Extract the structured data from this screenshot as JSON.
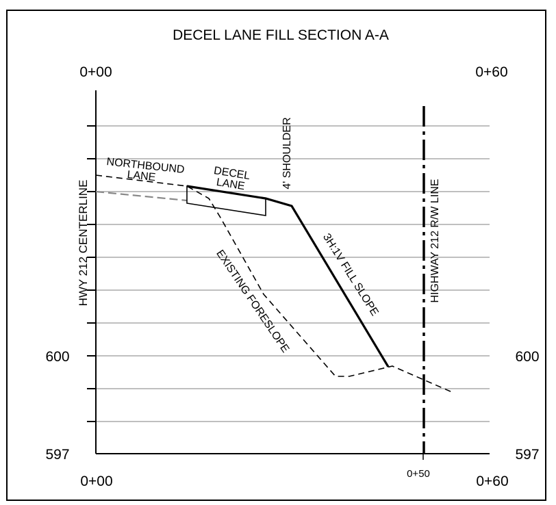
{
  "title": "DECEL LANE FILL SECTION A-A",
  "axis": {
    "top_left": "0+00",
    "top_right": "0+60",
    "bottom_left": "0+00",
    "bottom_mid": "0+50",
    "bottom_right": "0+60",
    "left_elev_600": "600",
    "left_elev_597": "597",
    "right_elev_600": "600",
    "right_elev_597": "597"
  },
  "labels": {
    "centerline": "HWY 212 CENTERLINE",
    "northbound_1": "NORTHBOUND",
    "northbound_2": "LANE",
    "decel_1": "DECEL",
    "decel_2": "LANE",
    "shoulder": "4' SHOULDER",
    "fill_slope": "3H:1V FILL SLOPE",
    "foreslope": "EXISTING FORESLOPE",
    "row_line": "HIGHWAY 212 R/W LINE"
  }
}
